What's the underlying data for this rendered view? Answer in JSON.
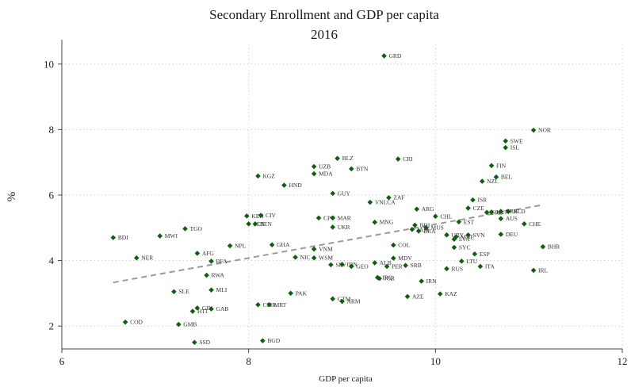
{
  "chart_data": {
    "type": "scatter",
    "title": "Secondary Enrollment and GDP per capita",
    "subtitle": "2016",
    "xlabel": "GDP per capita",
    "ylabel": "%",
    "xlim": [
      6,
      12
    ],
    "ylim": [
      1.3,
      10.6
    ],
    "xticks": [
      6,
      8,
      10,
      12
    ],
    "yticks": [
      2,
      4,
      6,
      8,
      10
    ],
    "grid": true,
    "point_color": "#0f5f0f",
    "fit_color": "#9a9a9a",
    "fit_line": {
      "x": [
        6.55,
        11.15
      ],
      "y": [
        3.33,
        5.7
      ]
    },
    "points": [
      {
        "label": "GRD",
        "x": 9.45,
        "y": 10.25
      },
      {
        "label": "NOR",
        "x": 11.05,
        "y": 7.98
      },
      {
        "label": "SWE",
        "x": 10.75,
        "y": 7.65
      },
      {
        "label": "ISL",
        "x": 10.75,
        "y": 7.45
      },
      {
        "label": "FIN",
        "x": 10.6,
        "y": 6.9
      },
      {
        "label": "BEL",
        "x": 10.65,
        "y": 6.55
      },
      {
        "label": "NZL",
        "x": 10.5,
        "y": 6.42
      },
      {
        "label": "BLZ",
        "x": 8.95,
        "y": 7.12
      },
      {
        "label": "CRI",
        "x": 9.6,
        "y": 7.1
      },
      {
        "label": "UZB",
        "x": 8.7,
        "y": 6.87
      },
      {
        "label": "BTN",
        "x": 9.1,
        "y": 6.8
      },
      {
        "label": "MDA",
        "x": 8.7,
        "y": 6.65
      },
      {
        "label": "KGZ",
        "x": 8.1,
        "y": 6.58
      },
      {
        "label": "HND",
        "x": 8.38,
        "y": 6.3
      },
      {
        "label": "GUY",
        "x": 8.9,
        "y": 6.05
      },
      {
        "label": "ZAF",
        "x": 9.5,
        "y": 5.92
      },
      {
        "label": "VNLCA",
        "x": 9.3,
        "y": 5.78
      },
      {
        "label": "ISR",
        "x": 10.4,
        "y": 5.85
      },
      {
        "label": "ARG",
        "x": 9.8,
        "y": 5.57
      },
      {
        "label": "CZE",
        "x": 10.35,
        "y": 5.6
      },
      {
        "label": "SRB",
        "x": 10.55,
        "y": 5.47
      },
      {
        "label": "HUN",
        "x": 10.6,
        "y": 5.48
      },
      {
        "label": "BRB",
        "x": 10.7,
        "y": 5.5
      },
      {
        "label": "NLD",
        "x": 10.78,
        "y": 5.5
      },
      {
        "label": "AUS",
        "x": 10.7,
        "y": 5.28
      },
      {
        "label": "CHE",
        "x": 10.95,
        "y": 5.12
      },
      {
        "label": "CHL",
        "x": 10.0,
        "y": 5.35
      },
      {
        "label": "EST",
        "x": 10.25,
        "y": 5.18
      },
      {
        "label": "KEN",
        "x": 7.98,
        "y": 5.36
      },
      {
        "label": "CIV",
        "x": 8.13,
        "y": 5.38
      },
      {
        "label": "CPV",
        "x": 8.75,
        "y": 5.3
      },
      {
        "label": "MAR",
        "x": 8.9,
        "y": 5.3
      },
      {
        "label": "MNG",
        "x": 9.35,
        "y": 5.17
      },
      {
        "label": "SEN",
        "x": 8.0,
        "y": 5.12
      },
      {
        "label": "BEN",
        "x": 8.07,
        "y": 5.12
      },
      {
        "label": "UKR",
        "x": 8.9,
        "y": 5.02
      },
      {
        "label": "TGO",
        "x": 7.32,
        "y": 4.97
      },
      {
        "label": "BIH",
        "x": 9.78,
        "y": 5.08
      },
      {
        "label": "MUS",
        "x": 9.9,
        "y": 5.0
      },
      {
        "label": "JAM",
        "x": 9.75,
        "y": 4.95
      },
      {
        "label": "BRA",
        "x": 9.82,
        "y": 4.9
      },
      {
        "label": "URY",
        "x": 10.12,
        "y": 4.78
      },
      {
        "label": "SVN",
        "x": 10.35,
        "y": 4.78
      },
      {
        "label": "MNE",
        "x": 10.22,
        "y": 4.72
      },
      {
        "label": "LVA",
        "x": 10.2,
        "y": 4.65
      },
      {
        "label": "DEU",
        "x": 10.7,
        "y": 4.8
      },
      {
        "label": "BDI",
        "x": 6.55,
        "y": 4.7
      },
      {
        "label": "MWI",
        "x": 7.05,
        "y": 4.75
      },
      {
        "label": "GHA",
        "x": 8.25,
        "y": 4.48
      },
      {
        "label": "NPL",
        "x": 7.8,
        "y": 4.45
      },
      {
        "label": "COL",
        "x": 9.55,
        "y": 4.47
      },
      {
        "label": "SYC",
        "x": 10.2,
        "y": 4.4
      },
      {
        "label": "BHR",
        "x": 11.15,
        "y": 4.42
      },
      {
        "label": "VNM",
        "x": 8.7,
        "y": 4.35
      },
      {
        "label": "AFG",
        "x": 7.45,
        "y": 4.22
      },
      {
        "label": "ESP",
        "x": 10.42,
        "y": 4.2
      },
      {
        "label": "NER",
        "x": 6.8,
        "y": 4.08
      },
      {
        "label": "NIC",
        "x": 8.5,
        "y": 4.1
      },
      {
        "label": "WSM",
        "x": 8.7,
        "y": 4.08
      },
      {
        "label": "MDV",
        "x": 9.55,
        "y": 4.07
      },
      {
        "label": "BFA",
        "x": 7.6,
        "y": 3.98
      },
      {
        "label": "LTU",
        "x": 10.28,
        "y": 3.98
      },
      {
        "label": "SLV",
        "x": 8.88,
        "y": 3.87
      },
      {
        "label": "IDN",
        "x": 9.0,
        "y": 3.88
      },
      {
        "label": "ALB",
        "x": 9.35,
        "y": 3.93
      },
      {
        "label": "GEO",
        "x": 9.1,
        "y": 3.82
      },
      {
        "label": "PER",
        "x": 9.48,
        "y": 3.82
      },
      {
        "label": "SRB",
        "x": 9.68,
        "y": 3.85
      },
      {
        "label": "ITA",
        "x": 10.48,
        "y": 3.82
      },
      {
        "label": "RUS",
        "x": 10.12,
        "y": 3.75
      },
      {
        "label": "IRL",
        "x": 11.05,
        "y": 3.7
      },
      {
        "label": "RWA",
        "x": 7.55,
        "y": 3.55
      },
      {
        "label": "IRQ",
        "x": 9.38,
        "y": 3.48
      },
      {
        "label": "JOR",
        "x": 9.4,
        "y": 3.45
      },
      {
        "label": "IRN",
        "x": 9.85,
        "y": 3.37
      },
      {
        "label": "SLE",
        "x": 7.2,
        "y": 3.05
      },
      {
        "label": "MLI",
        "x": 7.6,
        "y": 3.1
      },
      {
        "label": "PAK",
        "x": 8.45,
        "y": 3.0
      },
      {
        "label": "KAZ",
        "x": 10.05,
        "y": 2.98
      },
      {
        "label": "AZE",
        "x": 9.7,
        "y": 2.9
      },
      {
        "label": "GTM",
        "x": 8.9,
        "y": 2.83
      },
      {
        "label": "ARM",
        "x": 9.0,
        "y": 2.75
      },
      {
        "label": "CMR",
        "x": 8.1,
        "y": 2.65
      },
      {
        "label": "MRT",
        "x": 8.22,
        "y": 2.65
      },
      {
        "label": "GIN",
        "x": 7.45,
        "y": 2.55
      },
      {
        "label": "GAB",
        "x": 7.6,
        "y": 2.52
      },
      {
        "label": "HTI",
        "x": 7.4,
        "y": 2.45
      },
      {
        "label": "COD",
        "x": 6.68,
        "y": 2.12
      },
      {
        "label": "GMB",
        "x": 7.25,
        "y": 2.05
      },
      {
        "label": "SSD",
        "x": 7.42,
        "y": 1.5
      },
      {
        "label": "BGD",
        "x": 8.15,
        "y": 1.55
      }
    ]
  }
}
